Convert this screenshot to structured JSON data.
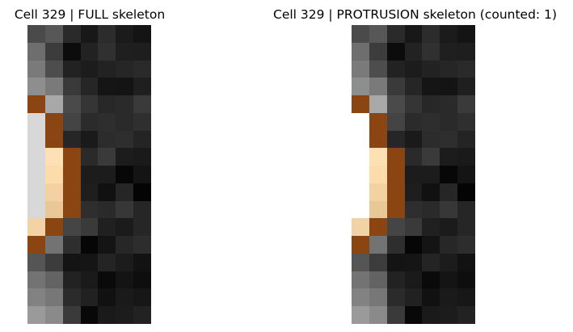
{
  "figure": {
    "panels": [
      {
        "title": "Cell 329 | FULL skeleton",
        "pixels": [
          [
            "#4a4a4a",
            "#575757",
            "#2a2a2a",
            "#181818",
            "#2c2c2c",
            "#1b1b1b",
            "#141414"
          ],
          [
            "#6e6e6e",
            "#3c3c3c",
            "#0c0c0c",
            "#222222",
            "#303030",
            "#1f1f1f",
            "#1e1e1e"
          ],
          [
            "#7a7a7a",
            "#4d4d4d",
            "#222222",
            "#1c1c1c",
            "#222222",
            "#262626",
            "#2a2a2a"
          ],
          [
            "#8e8e8e",
            "#7a7a7a",
            "#3a3a3a",
            "#262626",
            "#151515",
            "#141414",
            "#1f1f1f"
          ],
          [
            "#8b4513",
            "#a8a8a8",
            "#4a4a4a",
            "#353535",
            "#272727",
            "#2a2a2a",
            "#3a3a3a"
          ],
          [
            "#d8d8d8",
            "#8b4513",
            "#444444",
            "#2b2b2b",
            "#2e2e2e",
            "#2a2a2a",
            "#2f2f2f"
          ],
          [
            "#d8d8d8",
            "#8b4513",
            "#262626",
            "#1a1a1a",
            "#2c2c2c",
            "#2e2e2e",
            "#242424"
          ],
          [
            "#d8d8d8",
            "#fde0b4",
            "#8b4513",
            "#2a2a2a",
            "#3a3a3a",
            "#1c1c1c",
            "#1a1a1a"
          ],
          [
            "#d8d8d8",
            "#fcdcab",
            "#8b4513",
            "#1c1c1c",
            "#1c1c1c",
            "#070707",
            "#141414"
          ],
          [
            "#d8d8d8",
            "#f4d1a2",
            "#8b4513",
            "#1e1e1e",
            "#111111",
            "#262626",
            "#040404"
          ],
          [
            "#d8d8d8",
            "#e8c897",
            "#8b4513",
            "#2e2e2e",
            "#2a2a2a",
            "#373737",
            "#262626"
          ],
          [
            "#f2d3a6",
            "#8b4513",
            "#454545",
            "#3a3a3a",
            "#202020",
            "#1b1b1b",
            "#262626"
          ],
          [
            "#8b4513",
            "#737373",
            "#2e2e2e",
            "#060606",
            "#141414",
            "#272727",
            "#2d2d2d"
          ],
          [
            "#555555",
            "#3c3c3c",
            "#141414",
            "#151515",
            "#242424",
            "#1c1c1c",
            "#121212"
          ],
          [
            "#737373",
            "#636363",
            "#222222",
            "#1a1a1a",
            "#0a0a0a",
            "#141414",
            "#0e0e0e"
          ],
          [
            "#828282",
            "#777777",
            "#2b2b2b",
            "#212121",
            "#111111",
            "#1a1a1a",
            "#171717"
          ],
          [
            "#9a9a9a",
            "#8a8a8a",
            "#3a3a3a",
            "#080808",
            "#1a1a1a",
            "#1c1c1c",
            "#222222"
          ]
        ]
      },
      {
        "title": "Cell 329 | PROTRUSION skeleton (counted: 1)",
        "pixels": [
          [
            "#4a4a4a",
            "#575757",
            "#2a2a2a",
            "#181818",
            "#2c2c2c",
            "#1b1b1b",
            "#141414"
          ],
          [
            "#6e6e6e",
            "#3c3c3c",
            "#0c0c0c",
            "#222222",
            "#303030",
            "#1f1f1f",
            "#1e1e1e"
          ],
          [
            "#7a7a7a",
            "#4d4d4d",
            "#222222",
            "#1c1c1c",
            "#222222",
            "#262626",
            "#2a2a2a"
          ],
          [
            "#8e8e8e",
            "#7a7a7a",
            "#3a3a3a",
            "#262626",
            "#151515",
            "#141414",
            "#1f1f1f"
          ],
          [
            "#8b4513",
            "#a8a8a8",
            "#4a4a4a",
            "#353535",
            "#272727",
            "#2a2a2a",
            "#3a3a3a"
          ],
          [
            "#ffffff",
            "#8b4513",
            "#444444",
            "#2b2b2b",
            "#2e2e2e",
            "#2a2a2a",
            "#2f2f2f"
          ],
          [
            "#ffffff",
            "#8b4513",
            "#262626",
            "#1a1a1a",
            "#2c2c2c",
            "#2e2e2e",
            "#242424"
          ],
          [
            "#ffffff",
            "#fde0b4",
            "#8b4513",
            "#2a2a2a",
            "#3a3a3a",
            "#1c1c1c",
            "#1a1a1a"
          ],
          [
            "#ffffff",
            "#fcdcab",
            "#8b4513",
            "#1c1c1c",
            "#1c1c1c",
            "#070707",
            "#141414"
          ],
          [
            "#ffffff",
            "#f4d1a2",
            "#8b4513",
            "#1e1e1e",
            "#111111",
            "#262626",
            "#040404"
          ],
          [
            "#ffffff",
            "#e8c897",
            "#8b4513",
            "#2e2e2e",
            "#2a2a2a",
            "#373737",
            "#262626"
          ],
          [
            "#f2d3a6",
            "#8b4513",
            "#454545",
            "#3a3a3a",
            "#202020",
            "#1b1b1b",
            "#262626"
          ],
          [
            "#8b4513",
            "#737373",
            "#2e2e2e",
            "#060606",
            "#141414",
            "#272727",
            "#2d2d2d"
          ],
          [
            "#555555",
            "#3c3c3c",
            "#141414",
            "#151515",
            "#242424",
            "#1c1c1c",
            "#121212"
          ],
          [
            "#737373",
            "#636363",
            "#222222",
            "#1a1a1a",
            "#0a0a0a",
            "#141414",
            "#0e0e0e"
          ],
          [
            "#828282",
            "#777777",
            "#2b2b2b",
            "#212121",
            "#111111",
            "#1a1a1a",
            "#171717"
          ],
          [
            "#9a9a9a",
            "#8a8a8a",
            "#3a3a3a",
            "#080808",
            "#1a1a1a",
            "#1c1c1c",
            "#222222"
          ]
        ]
      }
    ]
  }
}
